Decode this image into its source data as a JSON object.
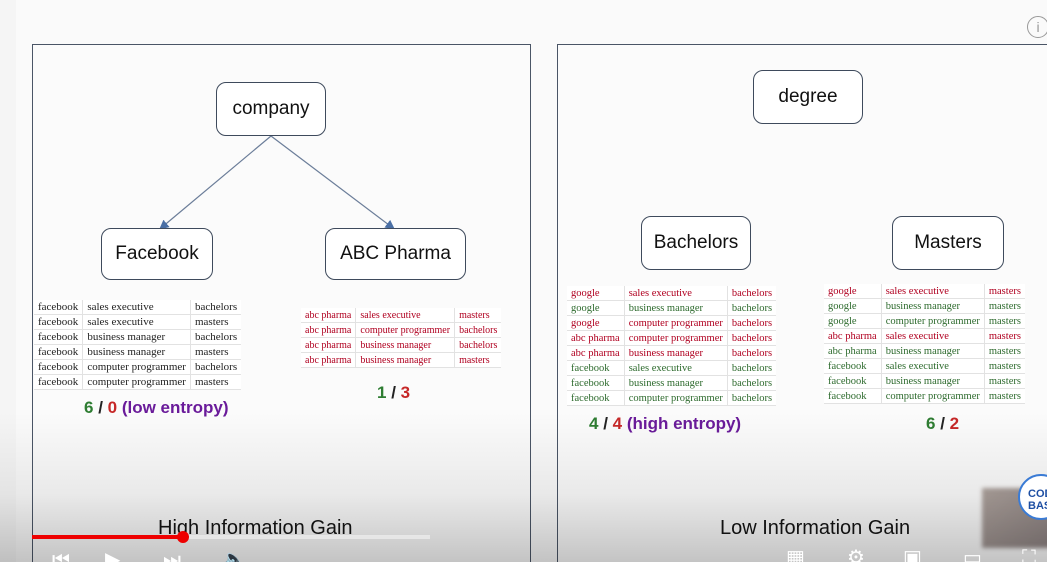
{
  "colors": {
    "green": "#2e7d32",
    "red": "#c62828",
    "purple": "#6a1b9a",
    "darkred": "#b00020",
    "progress": "#e00000"
  },
  "left_panel": {
    "root": "company",
    "children": [
      "Facebook",
      "ABC Pharma"
    ],
    "table1": [
      [
        "facebook",
        "sales executive",
        "bachelors"
      ],
      [
        "facebook",
        "sales executive",
        "masters"
      ],
      [
        "facebook",
        "business manager",
        "bachelors"
      ],
      [
        "facebook",
        "business manager",
        "masters"
      ],
      [
        "facebook",
        "computer programmer",
        "bachelors"
      ],
      [
        "facebook",
        "computer programmer",
        "masters"
      ]
    ],
    "table2": [
      [
        "abc pharma",
        "sales executive",
        "masters"
      ],
      [
        "abc pharma",
        "computer programmer",
        "bachelors"
      ],
      [
        "abc pharma",
        "business manager",
        "bachelors"
      ],
      [
        "abc pharma",
        "business manager",
        "masters"
      ]
    ],
    "stat1": {
      "a": "6",
      "sep": " / ",
      "b": "0",
      "note": " (low entropy)"
    },
    "stat2": {
      "a": "1",
      "sep": " / ",
      "b": "3"
    },
    "caption": "High Information Gain"
  },
  "right_panel": {
    "root": "degree",
    "children": [
      "Bachelors",
      "Masters"
    ],
    "table1": [
      [
        "google",
        "sales executive",
        "bachelors"
      ],
      [
        "google",
        "business manager",
        "bachelors"
      ],
      [
        "google",
        "computer programmer",
        "bachelors"
      ],
      [
        "abc pharma",
        "computer programmer",
        "bachelors"
      ],
      [
        "abc pharma",
        "business manager",
        "bachelors"
      ],
      [
        "facebook",
        "sales executive",
        "bachelors"
      ],
      [
        "facebook",
        "business manager",
        "bachelors"
      ],
      [
        "facebook",
        "computer programmer",
        "bachelors"
      ]
    ],
    "table1_red": [
      true,
      false,
      true,
      true,
      true,
      false,
      false,
      false
    ],
    "table2": [
      [
        "google",
        "sales executive",
        "masters"
      ],
      [
        "google",
        "business manager",
        "masters"
      ],
      [
        "google",
        "computer programmer",
        "masters"
      ],
      [
        "abc pharma",
        "sales executive",
        "masters"
      ],
      [
        "abc pharma",
        "business manager",
        "masters"
      ],
      [
        "facebook",
        "sales executive",
        "masters"
      ],
      [
        "facebook",
        "business manager",
        "masters"
      ],
      [
        "facebook",
        "computer programmer",
        "masters"
      ]
    ],
    "table2_red": [
      true,
      false,
      false,
      true,
      false,
      false,
      false,
      false
    ],
    "stat1": {
      "a": "4",
      "sep": " / ",
      "b": "4",
      "note": " (high entropy)"
    },
    "stat2": {
      "a": "6",
      "sep": " / ",
      "b": "2"
    },
    "caption": "Low Information Gain"
  },
  "player": {
    "progress_fraction": 0.38,
    "icons": [
      "previous-icon",
      "play-icon",
      "next-icon",
      "volume-icon",
      "subtitles-icon",
      "settings-icon",
      "miniplayer-icon",
      "theater-icon",
      "fullscreen-icon"
    ],
    "info_icon": "i",
    "channel_logo": "COD BASI"
  }
}
